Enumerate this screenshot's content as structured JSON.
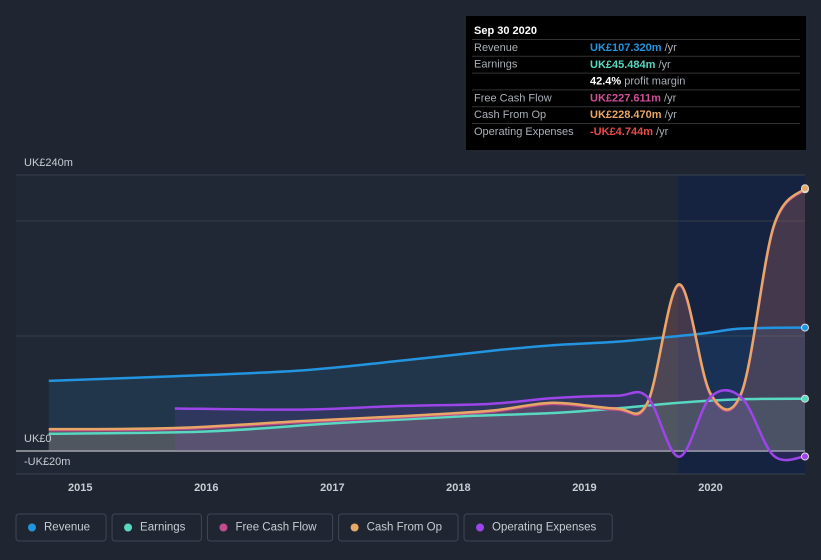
{
  "chart_data": {
    "type": "line",
    "xlim": [
      2014.49,
      2020.75
    ],
    "xticks": [
      2015,
      2016,
      2017,
      2018,
      2019,
      2020
    ],
    "ylim": [
      -20,
      240
    ],
    "yticks": [
      {
        "value": 240,
        "label": "UK£240m"
      },
      {
        "value": 0,
        "label": "UK£0"
      },
      {
        "value": -20,
        "label": "-UK£20m"
      }
    ],
    "minor_grid": [
      100,
      200
    ],
    "series": [
      {
        "name": "Revenue",
        "color": "#2394df",
        "x": [
          2014.75,
          2015.75,
          2016.75,
          2017.5,
          2018.25,
          2018.75,
          2019.25,
          2019.75,
          2020,
          2020.25,
          2020.75
        ],
        "values": [
          61,
          65,
          70,
          78,
          87,
          92,
          95,
          100,
          103,
          106.5,
          107.32
        ]
      },
      {
        "name": "Earnings",
        "color": "#58d8c0",
        "x": [
          2014.75,
          2016,
          2017,
          2018,
          2018.75,
          2019.25,
          2019.75,
          2020.25,
          2020.75
        ],
        "values": [
          15,
          17,
          24,
          30,
          33,
          37,
          42,
          45,
          45.484
        ]
      },
      {
        "name": "Free Cash Flow",
        "color": "#c04d8d",
        "x": [
          2014.75,
          2015.75,
          2016.75,
          2017.5,
          2018.25,
          2018.75,
          2019.25,
          2019.5,
          2019.75,
          2020,
          2020.25,
          2020.5,
          2020.75
        ],
        "values": [
          18,
          19,
          25,
          29,
          34,
          41,
          36,
          41,
          144,
          49,
          51,
          194,
          227.611
        ]
      },
      {
        "name": "Cash From Op",
        "color": "#e8a766",
        "x": [
          2014.75,
          2015.75,
          2016.75,
          2017.5,
          2018.25,
          2018.75,
          2019.25,
          2019.5,
          2019.75,
          2020,
          2020.25,
          2020.5,
          2020.75
        ],
        "values": [
          19,
          20,
          26,
          30,
          35,
          42,
          37,
          42,
          145,
          50,
          52,
          195,
          228.47
        ]
      },
      {
        "name": "Operating Expenses",
        "color": "#9c45e8",
        "x": [
          2015.75,
          2016.75,
          2017.5,
          2018.25,
          2018.75,
          2019.25,
          2019.5,
          2019.75,
          2020,
          2020.25,
          2020.5,
          2020.75
        ],
        "values": [
          37,
          36,
          39,
          41,
          46,
          48,
          47,
          -5,
          47,
          46,
          -4,
          -4.744
        ]
      }
    ],
    "tooltip": {
      "date": "Sep 30 2020",
      "rows": [
        {
          "label": "Revenue",
          "value": "UK£107.320m",
          "unit": "/yr",
          "color": "#2394df"
        },
        {
          "label": "Earnings",
          "value": "UK£45.484m",
          "unit": "/yr",
          "color": "#58d8c0"
        },
        {
          "value": "42.4%",
          "unit": "profit margin",
          "color": "#ffffff"
        },
        {
          "label": "Free Cash Flow",
          "value": "UK£227.611m",
          "unit": "/yr",
          "color": "#d0509a"
        },
        {
          "label": "Cash From Op",
          "value": "UK£228.470m",
          "unit": "/yr",
          "color": "#e8a766"
        },
        {
          "label": "Operating Expenses",
          "value": "-UK£4.744m",
          "unit": "/yr",
          "color": "#e64a4a"
        }
      ]
    }
  }
}
